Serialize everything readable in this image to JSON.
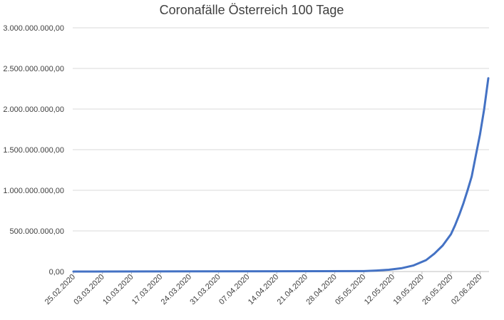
{
  "chart_data": {
    "type": "line",
    "title": "Coronafälle Österreich 100 Tage",
    "xlabel": "",
    "ylabel": "",
    "ylim": [
      0,
      3000000000
    ],
    "yticks": [
      0,
      500000000,
      1000000000,
      1500000000,
      2000000000,
      2500000000,
      3000000000
    ],
    "ytick_labels": [
      "0,00",
      "500.000.000,00",
      "1.000.000.000,00",
      "1.500.000.000,00",
      "2.000.000.000,00",
      "2.500.000.000,00",
      "3.000.000.000,00"
    ],
    "xticks": [
      "25.02.2020",
      "03.03.2020",
      "10.03.2020",
      "17.03.2020",
      "24.03.2020",
      "31.03.2020",
      "07.04.2020",
      "14.04.2020",
      "21.04.2020",
      "28.04.2020",
      "05.05.2020",
      "12.05.2020",
      "19.05.2020",
      "26.05.2020",
      "02.06.2020"
    ],
    "grid": true,
    "legend": "none",
    "series_color": "#4472c4",
    "series": [
      {
        "x": [
          "05.05.2020",
          "08.05.2020",
          "11.05.2020",
          "14.05.2020",
          "17.05.2020",
          "20.05.2020",
          "22.05.2020",
          "24.05.2020",
          "26.05.2020",
          "27.05.2020",
          "28.05.2020",
          "29.05.2020",
          "30.05.2020",
          "31.05.2020",
          "01.06.2020",
          "02.06.2020",
          "03.06.2020",
          "04.06.2020"
        ],
        "values": [
          5000000,
          12000000,
          22000000,
          40000000,
          75000000,
          140000000,
          220000000,
          320000000,
          460000000,
          570000000,
          700000000,
          840000000,
          1000000000,
          1170000000,
          1430000000,
          1690000000,
          2000000000,
          2380000000
        ]
      }
    ]
  }
}
